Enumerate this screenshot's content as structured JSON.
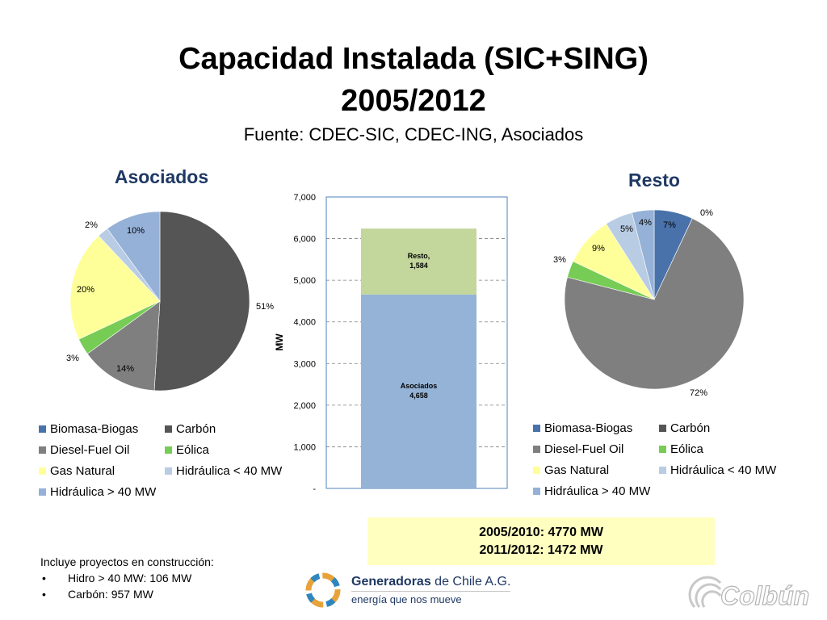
{
  "header": {
    "title_line1": "Capacidad Instalada (SIC+SING)",
    "title_line2": "2005/2012",
    "subtitle": "Fuente: CDEC-SIC, CDEC-ING, Asociados"
  },
  "categories": [
    "Biomasa-Biogas",
    "Carbón",
    "Diesel-Fuel Oil",
    "Eólica",
    "Gas Natural",
    "Hidráulica < 40 MW",
    "Hidráulica > 40 MW"
  ],
  "colors": [
    "#4a72aa",
    "#555555",
    "#7f7f7f",
    "#77cc55",
    "#ffff99",
    "#b8cce4",
    "#95b1d7"
  ],
  "chart_data": [
    {
      "type": "pie",
      "title": "Asociados",
      "categories": [
        "Biomasa-Biogas",
        "Carbón",
        "Diesel-Fuel Oil",
        "Eólica",
        "Gas Natural",
        "Hidráulica < 40 MW",
        "Hidráulica > 40 MW"
      ],
      "values": [
        0,
        51,
        14,
        3,
        20,
        2,
        10
      ],
      "labels": [
        "",
        "51%",
        "14%",
        "3%",
        "20%",
        "2%",
        "10%"
      ]
    },
    {
      "type": "bar",
      "stacked": true,
      "ylabel": "MW",
      "ylim": [
        0,
        7000
      ],
      "yticks": [
        "-",
        "1,000",
        "2,000",
        "3,000",
        "4,000",
        "5,000",
        "6,000",
        "7,000"
      ],
      "series": [
        {
          "name": "Asociados",
          "values": [
            4658
          ],
          "label": "4,658"
        },
        {
          "name": "Resto,",
          "values": [
            1584
          ],
          "label": "1,584"
        }
      ],
      "colors": [
        "#95b3d7",
        "#c3d69b"
      ],
      "grid": true
    },
    {
      "type": "pie",
      "title": "Resto",
      "categories": [
        "Biomasa-Biogas",
        "Carbón",
        "Diesel-Fuel Oil",
        "Eólica",
        "Gas Natural",
        "Hidráulica < 40 MW",
        "Hidráulica > 40 MW"
      ],
      "values": [
        7,
        0,
        72,
        3,
        9,
        5,
        4
      ],
      "labels": [
        "7%",
        "0%",
        "72%",
        "3%",
        "9%",
        "5%",
        "4%"
      ]
    }
  ],
  "summary": {
    "line1": "2005/2010: 4770 MW",
    "line2": "2011/2012: 1472 MW"
  },
  "notes": {
    "heading": "Incluye proyectos en construcción:",
    "items": [
      "Hidro > 40 MW: 106 MW",
      "Carbón: 957 MW"
    ]
  },
  "logos": {
    "generadoras_name_bold": "Generadoras",
    "generadoras_name_rest": " de Chile A.G.",
    "generadoras_tagline": "energía que nos mueve",
    "colbun": "Colbún"
  }
}
